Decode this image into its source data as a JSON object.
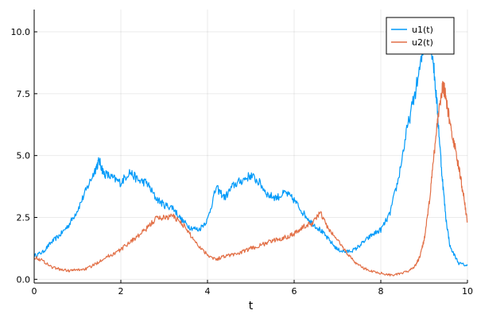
{
  "chart_data": {
    "type": "line",
    "title": "",
    "xlabel": "t",
    "ylabel": "",
    "xlim": [
      0,
      10
    ],
    "ylim": [
      -0.15,
      10.9
    ],
    "grid": true,
    "legend_position": "top-right",
    "x_ticks": [
      {
        "value": 0,
        "label": "0"
      },
      {
        "value": 2,
        "label": "2"
      },
      {
        "value": 4,
        "label": "4"
      },
      {
        "value": 6,
        "label": "6"
      },
      {
        "value": 8,
        "label": "8"
      },
      {
        "value": 10,
        "label": "10"
      }
    ],
    "y_ticks": [
      {
        "value": 0,
        "label": "0.0"
      },
      {
        "value": 2.5,
        "label": "2.5"
      },
      {
        "value": 5,
        "label": "5.0"
      },
      {
        "value": 7.5,
        "label": "7.5"
      },
      {
        "value": 10,
        "label": "10.0"
      }
    ],
    "series": [
      {
        "name": "u1(t)",
        "color": "#009AF9",
        "points": [
          [
            0.0,
            0.95
          ],
          [
            0.2,
            1.1
          ],
          [
            0.4,
            1.5
          ],
          [
            0.6,
            1.8
          ],
          [
            0.8,
            2.2
          ],
          [
            1.0,
            2.8
          ],
          [
            1.2,
            3.6
          ],
          [
            1.4,
            4.4
          ],
          [
            1.5,
            4.8
          ],
          [
            1.6,
            4.3
          ],
          [
            1.8,
            4.1
          ],
          [
            2.0,
            3.9
          ],
          [
            2.2,
            4.35
          ],
          [
            2.4,
            4.0
          ],
          [
            2.6,
            3.9
          ],
          [
            2.8,
            3.3
          ],
          [
            3.0,
            3.0
          ],
          [
            3.2,
            2.9
          ],
          [
            3.4,
            2.4
          ],
          [
            3.6,
            2.1
          ],
          [
            3.8,
            2.0
          ],
          [
            4.0,
            2.4
          ],
          [
            4.2,
            3.7
          ],
          [
            4.4,
            3.3
          ],
          [
            4.6,
            3.8
          ],
          [
            4.8,
            4.0
          ],
          [
            5.0,
            4.2
          ],
          [
            5.2,
            3.9
          ],
          [
            5.4,
            3.4
          ],
          [
            5.6,
            3.3
          ],
          [
            5.8,
            3.5
          ],
          [
            6.0,
            3.2
          ],
          [
            6.2,
            2.7
          ],
          [
            6.4,
            2.3
          ],
          [
            6.6,
            2.0
          ],
          [
            6.8,
            1.6
          ],
          [
            7.0,
            1.2
          ],
          [
            7.2,
            1.1
          ],
          [
            7.4,
            1.2
          ],
          [
            7.6,
            1.5
          ],
          [
            7.8,
            1.8
          ],
          [
            8.0,
            2.0
          ],
          [
            8.2,
            2.6
          ],
          [
            8.4,
            4.0
          ],
          [
            8.6,
            6.0
          ],
          [
            8.8,
            7.6
          ],
          [
            9.0,
            9.4
          ],
          [
            9.1,
            9.9
          ],
          [
            9.2,
            9.0
          ],
          [
            9.3,
            7.0
          ],
          [
            9.4,
            4.5
          ],
          [
            9.5,
            2.5
          ],
          [
            9.6,
            1.3
          ],
          [
            9.8,
            0.65
          ],
          [
            10.0,
            0.55
          ]
        ]
      },
      {
        "name": "u2(t)",
        "color": "#E26F46",
        "points": [
          [
            0.0,
            0.9
          ],
          [
            0.2,
            0.75
          ],
          [
            0.4,
            0.5
          ],
          [
            0.6,
            0.4
          ],
          [
            0.8,
            0.35
          ],
          [
            1.0,
            0.38
          ],
          [
            1.2,
            0.42
          ],
          [
            1.4,
            0.6
          ],
          [
            1.6,
            0.85
          ],
          [
            1.8,
            1.0
          ],
          [
            2.0,
            1.2
          ],
          [
            2.2,
            1.5
          ],
          [
            2.4,
            1.75
          ],
          [
            2.6,
            2.05
          ],
          [
            2.8,
            2.45
          ],
          [
            3.0,
            2.5
          ],
          [
            3.2,
            2.55
          ],
          [
            3.4,
            2.3
          ],
          [
            3.6,
            1.8
          ],
          [
            3.8,
            1.35
          ],
          [
            4.0,
            1.0
          ],
          [
            4.2,
            0.8
          ],
          [
            4.4,
            0.95
          ],
          [
            4.6,
            1.0
          ],
          [
            4.8,
            1.1
          ],
          [
            5.0,
            1.25
          ],
          [
            5.2,
            1.35
          ],
          [
            5.4,
            1.5
          ],
          [
            5.6,
            1.6
          ],
          [
            5.8,
            1.7
          ],
          [
            6.0,
            1.85
          ],
          [
            6.2,
            2.1
          ],
          [
            6.4,
            2.25
          ],
          [
            6.6,
            2.7
          ],
          [
            6.8,
            2.0
          ],
          [
            7.0,
            1.6
          ],
          [
            7.2,
            1.1
          ],
          [
            7.4,
            0.7
          ],
          [
            7.6,
            0.45
          ],
          [
            7.8,
            0.32
          ],
          [
            8.0,
            0.25
          ],
          [
            8.2,
            0.18
          ],
          [
            8.4,
            0.2
          ],
          [
            8.6,
            0.3
          ],
          [
            8.8,
            0.55
          ],
          [
            8.9,
            0.9
          ],
          [
            9.0,
            1.6
          ],
          [
            9.1,
            2.8
          ],
          [
            9.2,
            4.5
          ],
          [
            9.3,
            6.3
          ],
          [
            9.4,
            7.6
          ],
          [
            9.45,
            7.8
          ],
          [
            9.5,
            7.3
          ],
          [
            9.6,
            6.3
          ],
          [
            9.7,
            5.4
          ],
          [
            9.8,
            4.5
          ],
          [
            9.9,
            3.5
          ],
          [
            10.0,
            2.3
          ]
        ]
      }
    ]
  }
}
